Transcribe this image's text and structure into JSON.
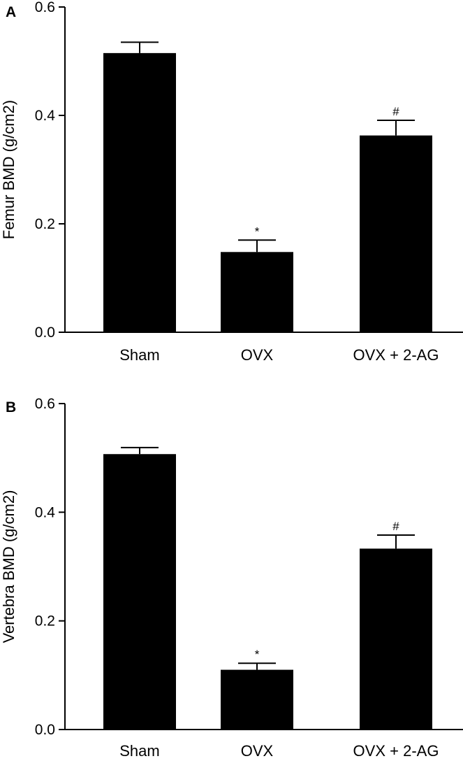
{
  "chart_data": [
    {
      "type": "bar",
      "panel_label": "A",
      "categories": [
        "Sham",
        "OVX",
        "OVX + 2-AG"
      ],
      "values": [
        0.515,
        0.148,
        0.363
      ],
      "errors": [
        0.02,
        0.022,
        0.028
      ],
      "significance": [
        "",
        "*",
        "#"
      ],
      "ylabel": "Femur BMD (g/cm2)",
      "ylim": [
        0,
        0.6
      ],
      "yticks": [
        "0.0",
        "0.2",
        "0.4",
        "0.6"
      ],
      "bar_color": "#000000"
    },
    {
      "type": "bar",
      "panel_label": "B",
      "categories": [
        "Sham",
        "OVX",
        "OVX + 2-AG"
      ],
      "values": [
        0.507,
        0.11,
        0.333
      ],
      "errors": [
        0.012,
        0.012,
        0.025
      ],
      "significance": [
        "",
        "*",
        "#"
      ],
      "ylabel": "Vertebra BMD (g/cm2)",
      "ylim": [
        0,
        0.6
      ],
      "yticks": [
        "0.0",
        "0.2",
        "0.4",
        "0.6"
      ],
      "bar_color": "#000000"
    }
  ]
}
